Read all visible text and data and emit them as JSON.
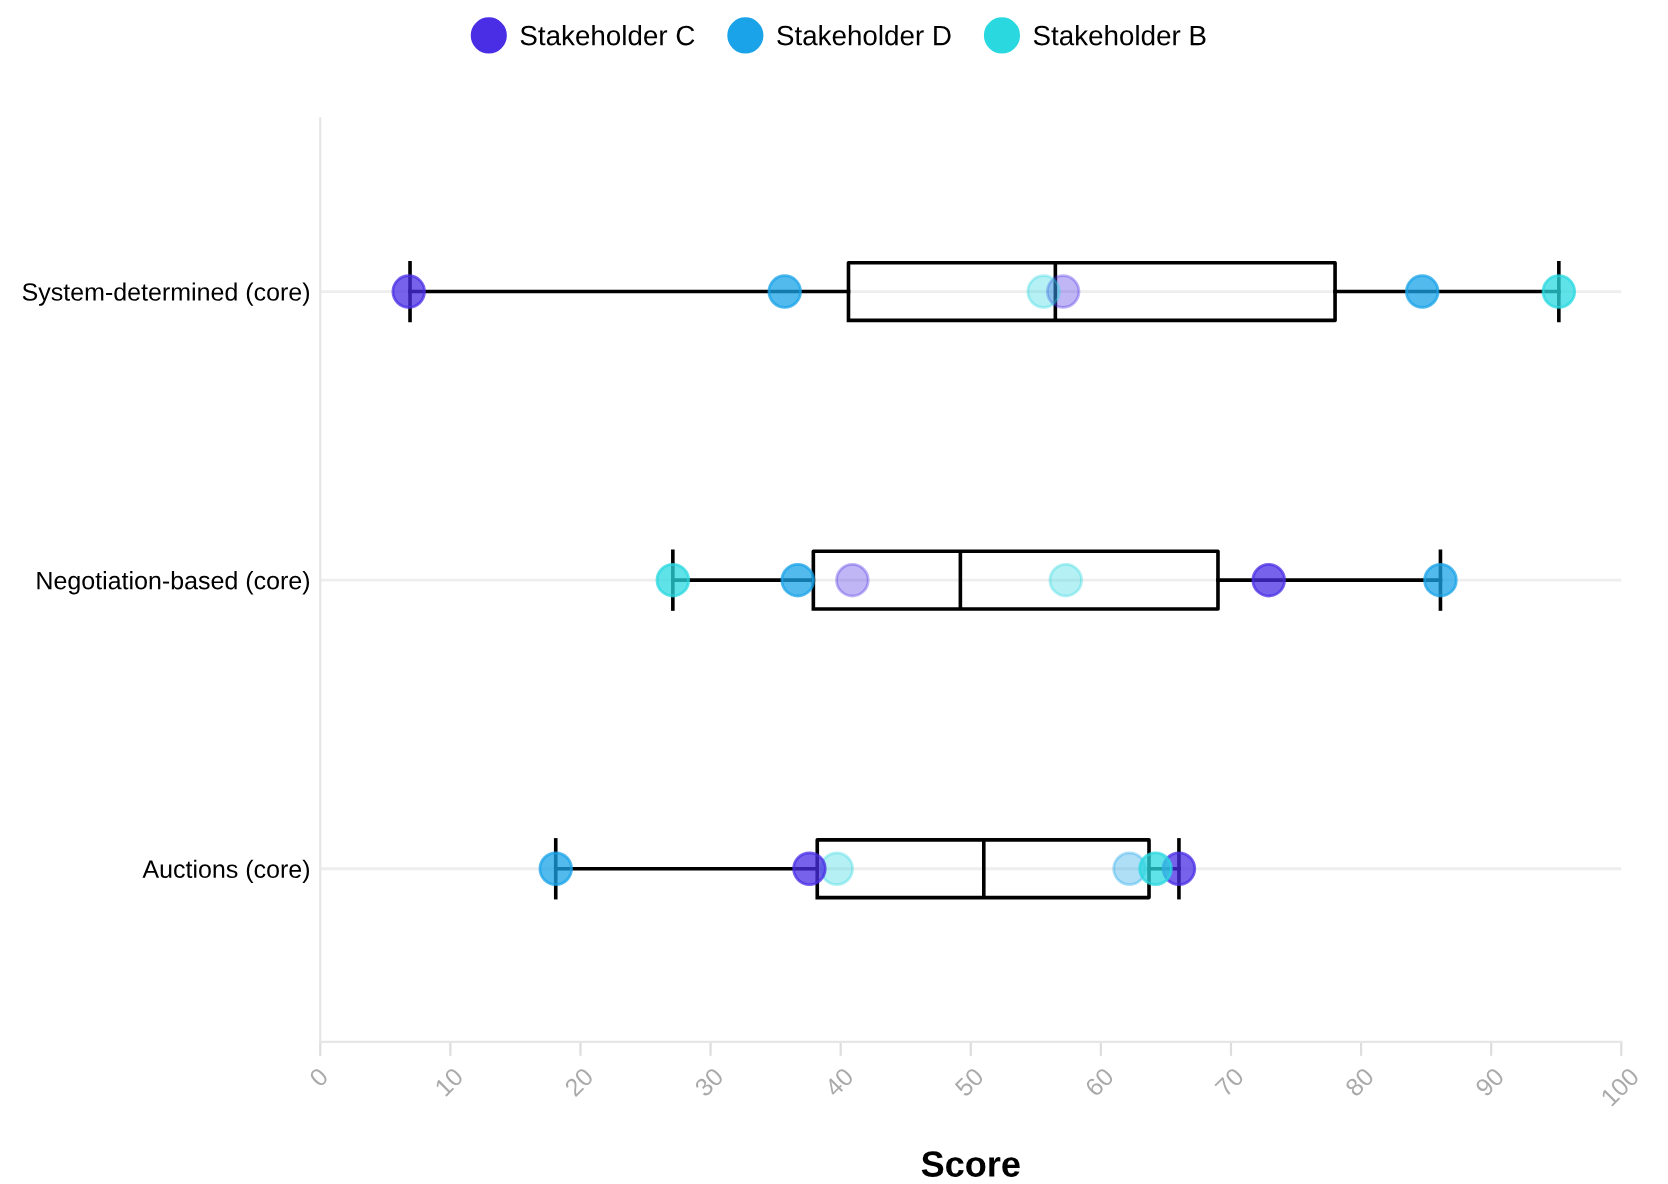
{
  "chart_data": {
    "type": "box",
    "orientation": "horizontal",
    "xlabel": "Score",
    "categories": [
      "System-determined (core)",
      "Negotiation-based (core)",
      "Auctions (core)"
    ],
    "boxes": [
      {
        "low": 6.9,
        "q1": 40.6,
        "median": 56.5,
        "q3": 78.0,
        "high": 95.2
      },
      {
        "low": 27.1,
        "q1": 37.9,
        "median": 49.2,
        "q3": 69.0,
        "high": 86.1
      },
      {
        "low": 18.1,
        "q1": 38.2,
        "median": 51.0,
        "q3": 63.7,
        "high": 66.0
      }
    ],
    "series": [
      {
        "name": "Stakeholder C",
        "type": "scatter",
        "color": "#4a2ee6",
        "x": [
          "System-determined (core)",
          "System-determined (core)",
          "Negotiation-based (core)",
          "Negotiation-based (core)",
          "Auctions (core)",
          "Auctions (core)"
        ],
        "values": [
          6.8,
          57.1,
          40.9,
          72.9,
          37.6,
          66.0
        ]
      },
      {
        "name": "Stakeholder D",
        "type": "scatter",
        "color": "#1aa3e8",
        "x": [
          "System-determined (core)",
          "System-determined (core)",
          "Negotiation-based (core)",
          "Negotiation-based (core)",
          "Auctions (core)",
          "Auctions (core)"
        ],
        "values": [
          35.7,
          84.7,
          36.7,
          86.1,
          18.1,
          62.2
        ]
      },
      {
        "name": "Stakeholder B",
        "type": "scatter",
        "color": "#2ad8e0",
        "x": [
          "System-determined (core)",
          "System-determined (core)",
          "Negotiation-based (core)",
          "Negotiation-based (core)",
          "Auctions (core)",
          "Auctions (core)"
        ],
        "values": [
          55.6,
          95.2,
          27.1,
          57.3,
          39.7,
          64.2
        ]
      }
    ],
    "xlim": [
      0,
      100
    ],
    "xticks": [
      0,
      10,
      20,
      30,
      40,
      50,
      60,
      70,
      80,
      90,
      100
    ],
    "grid": "y",
    "legend": "top",
    "marker": "circle"
  }
}
